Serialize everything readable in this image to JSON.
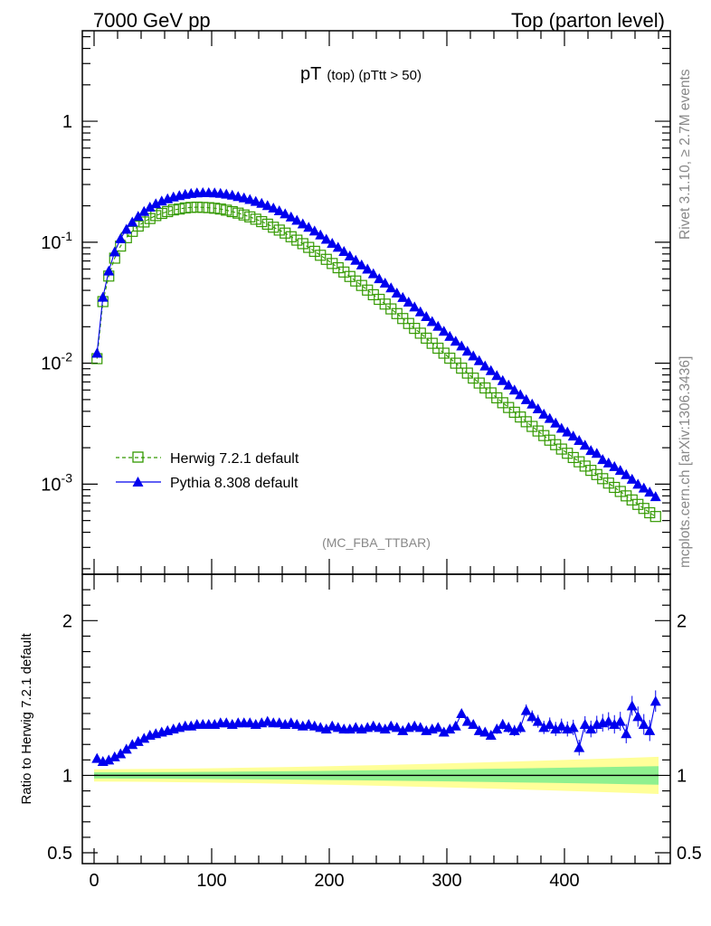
{
  "header": {
    "left": "7000 GeV pp",
    "right": "Top (parton level)"
  },
  "side_labels": {
    "rivet": "Rivet 3.1.10, ≥ 2.7M events",
    "mcplots": "mcplots.cern.ch [arXiv:1306.3436]"
  },
  "main_title": {
    "main": "pT",
    "sub": "(top)  (pTtt > 50)"
  },
  "watermark": "(MC_FBA_TTBAR)",
  "ratio_ylabel": "Ratio to Herwig 7.2.1 default",
  "legend": [
    {
      "label": "Herwig 7.2.1 default",
      "color": "#339900",
      "marker": "open-square",
      "line": "dashed"
    },
    {
      "label": "Pythia 8.308 default",
      "color": "#0000ee",
      "marker": "filled-triangle",
      "line": "solid"
    }
  ],
  "chart_data": [
    {
      "type": "line",
      "yscale": "log",
      "xlim": [
        -10,
        490
      ],
      "ylim": [
        0.00018,
        5.6
      ],
      "ytick_labels": [
        {
          "value": 1,
          "label": "1"
        },
        {
          "value": 0.1,
          "label": "10^-1"
        },
        {
          "value": 0.01,
          "label": "10^-2"
        },
        {
          "value": 0.001,
          "label": "10^-3"
        }
      ],
      "x": [
        2.5,
        7.5,
        12.5,
        17.5,
        22.5,
        27.5,
        32.5,
        37.5,
        42.5,
        47.5,
        52.5,
        57.5,
        62.5,
        67.5,
        72.5,
        77.5,
        82.5,
        87.5,
        92.5,
        97.5,
        102.5,
        107.5,
        112.5,
        117.5,
        122.5,
        127.5,
        132.5,
        137.5,
        142.5,
        147.5,
        152.5,
        157.5,
        162.5,
        167.5,
        172.5,
        177.5,
        182.5,
        187.5,
        192.5,
        197.5,
        202.5,
        207.5,
        212.5,
        217.5,
        222.5,
        227.5,
        232.5,
        237.5,
        242.5,
        247.5,
        252.5,
        257.5,
        262.5,
        267.5,
        272.5,
        277.5,
        282.5,
        287.5,
        292.5,
        297.5,
        302.5,
        307.5,
        312.5,
        317.5,
        322.5,
        327.5,
        332.5,
        337.5,
        342.5,
        347.5,
        352.5,
        357.5,
        362.5,
        367.5,
        372.5,
        377.5,
        382.5,
        387.5,
        392.5,
        397.5,
        402.5,
        407.5,
        412.5,
        417.5,
        422.5,
        427.5,
        432.5,
        437.5,
        442.5,
        447.5,
        452.5,
        457.5,
        462.5,
        467.5,
        472.5,
        477.5
      ],
      "series": [
        {
          "name": "Herwig 7.2.1 default",
          "values": [
            0.0109,
            0.0323,
            0.0525,
            0.0738,
            0.0929,
            0.109,
            0.123,
            0.136,
            0.147,
            0.157,
            0.166,
            0.173,
            0.179,
            0.185,
            0.188,
            0.192,
            0.194,
            0.195,
            0.194,
            0.193,
            0.191,
            0.188,
            0.184,
            0.179,
            0.174,
            0.168,
            0.162,
            0.155,
            0.148,
            0.141,
            0.133,
            0.126,
            0.119,
            0.111,
            0.104,
            0.0973,
            0.0906,
            0.0841,
            0.078,
            0.0722,
            0.0667,
            0.0615,
            0.0567,
            0.0521,
            0.0478,
            0.0439,
            0.0402,
            0.0368,
            0.0337,
            0.0308,
            0.0281,
            0.0257,
            0.0234,
            0.0213,
            0.0194,
            0.0177,
            0.0161,
            0.0146,
            0.0133,
            0.0121,
            0.011,
            0.01,
            0.0091,
            0.00828,
            0.00753,
            0.00685,
            0.00624,
            0.00568,
            0.00517,
            0.00471,
            0.0043,
            0.00393,
            0.00359,
            0.00328,
            0.003,
            0.00275,
            0.00252,
            0.00231,
            0.00212,
            0.00195,
            0.0018,
            0.00166,
            0.00153,
            0.00141,
            0.0013,
            0.0012,
            0.00111,
            0.00102,
            0.00094,
            0.00087,
            0.0008,
            0.00074,
            0.00068,
            0.00063,
            0.00058,
            0.00054
          ]
        },
        {
          "name": "Pythia 8.308 default",
          "values": [
            0.0121,
            0.0351,
            0.0579,
            0.0832,
            0.107,
            0.128,
            0.147,
            0.164,
            0.18,
            0.195,
            0.208,
            0.219,
            0.229,
            0.237,
            0.243,
            0.249,
            0.253,
            0.256,
            0.257,
            0.257,
            0.256,
            0.254,
            0.25,
            0.245,
            0.239,
            0.233,
            0.226,
            0.218,
            0.21,
            0.201,
            0.192,
            0.182,
            0.172,
            0.162,
            0.152,
            0.142,
            0.133,
            0.124,
            0.115,
            0.106,
            0.098,
            0.091,
            0.084,
            0.077,
            0.071,
            0.065,
            0.06,
            0.055,
            0.05,
            0.046,
            0.042,
            0.038,
            0.035,
            0.032,
            0.0292,
            0.0266,
            0.0243,
            0.0221,
            0.0202,
            0.0184,
            0.0167,
            0.0152,
            0.0139,
            0.0126,
            0.0115,
            0.0105,
            0.0095,
            0.0087,
            0.0079,
            0.0072,
            0.0066,
            0.006,
            0.0055,
            0.005,
            0.0046,
            0.0042,
            0.0038,
            0.0035,
            0.0032,
            0.0029,
            0.0027,
            0.0025,
            0.0023,
            0.0021,
            0.0019,
            0.0018,
            0.0016,
            0.0015,
            0.0014,
            0.0013,
            0.0012,
            0.0011,
            0.001,
            0.00093,
            0.00086,
            0.00079
          ]
        }
      ]
    },
    {
      "type": "line",
      "xlim": [
        -10,
        490
      ],
      "ylim": [
        0.43,
        2.3
      ],
      "ytick_labels": [
        {
          "value": 2,
          "label": "2"
        },
        {
          "value": 1,
          "label": "1"
        },
        {
          "value": 0.5,
          "label": "0.5"
        }
      ],
      "xtick_labels": [
        {
          "value": 0,
          "label": "0"
        },
        {
          "value": 100,
          "label": "100"
        },
        {
          "value": 200,
          "label": "200"
        },
        {
          "value": 300,
          "label": "300"
        },
        {
          "value": 400,
          "label": "400"
        }
      ],
      "x": [
        2.5,
        7.5,
        12.5,
        17.5,
        22.5,
        27.5,
        32.5,
        37.5,
        42.5,
        47.5,
        52.5,
        57.5,
        62.5,
        67.5,
        72.5,
        77.5,
        82.5,
        87.5,
        92.5,
        97.5,
        102.5,
        107.5,
        112.5,
        117.5,
        122.5,
        127.5,
        132.5,
        137.5,
        142.5,
        147.5,
        152.5,
        157.5,
        162.5,
        167.5,
        172.5,
        177.5,
        182.5,
        187.5,
        192.5,
        197.5,
        202.5,
        207.5,
        212.5,
        217.5,
        222.5,
        227.5,
        232.5,
        237.5,
        242.5,
        247.5,
        252.5,
        257.5,
        262.5,
        267.5,
        272.5,
        277.5,
        282.5,
        287.5,
        292.5,
        297.5,
        302.5,
        307.5,
        312.5,
        317.5,
        322.5,
        327.5,
        332.5,
        337.5,
        342.5,
        347.5,
        352.5,
        357.5,
        362.5,
        367.5,
        372.5,
        377.5,
        382.5,
        387.5,
        392.5,
        397.5,
        402.5,
        407.5,
        412.5,
        417.5,
        422.5,
        427.5,
        432.5,
        437.5,
        442.5,
        447.5,
        452.5,
        457.5,
        462.5,
        467.5,
        472.5,
        477.5
      ],
      "series": [
        {
          "name": "Pythia 8.308 default",
          "values": [
            1.11,
            1.09,
            1.1,
            1.12,
            1.14,
            1.17,
            1.2,
            1.22,
            1.24,
            1.26,
            1.27,
            1.28,
            1.29,
            1.3,
            1.31,
            1.32,
            1.32,
            1.33,
            1.33,
            1.33,
            1.33,
            1.34,
            1.34,
            1.33,
            1.34,
            1.34,
            1.34,
            1.33,
            1.34,
            1.35,
            1.34,
            1.34,
            1.33,
            1.34,
            1.33,
            1.32,
            1.33,
            1.32,
            1.31,
            1.3,
            1.32,
            1.31,
            1.3,
            1.3,
            1.31,
            1.3,
            1.31,
            1.32,
            1.31,
            1.3,
            1.32,
            1.31,
            1.29,
            1.31,
            1.32,
            1.31,
            1.29,
            1.3,
            1.31,
            1.28,
            1.3,
            1.32,
            1.4,
            1.35,
            1.33,
            1.29,
            1.28,
            1.26,
            1.3,
            1.33,
            1.31,
            1.29,
            1.31,
            1.42,
            1.38,
            1.35,
            1.31,
            1.33,
            1.3,
            1.32,
            1.3,
            1.31,
            1.18,
            1.33,
            1.3,
            1.33,
            1.34,
            1.35,
            1.33,
            1.35,
            1.27,
            1.45,
            1.38,
            1.33,
            1.29,
            1.48
          ]
        }
      ],
      "reference_line": 1,
      "bands": {
        "inner": {
          "color": "#8ff08f",
          "halfwidth_start": 0.02,
          "halfwidth_end": 0.06
        },
        "outer": {
          "color": "#ffff99",
          "halfwidth_start": 0.04,
          "halfwidth_end": 0.12
        }
      }
    }
  ]
}
